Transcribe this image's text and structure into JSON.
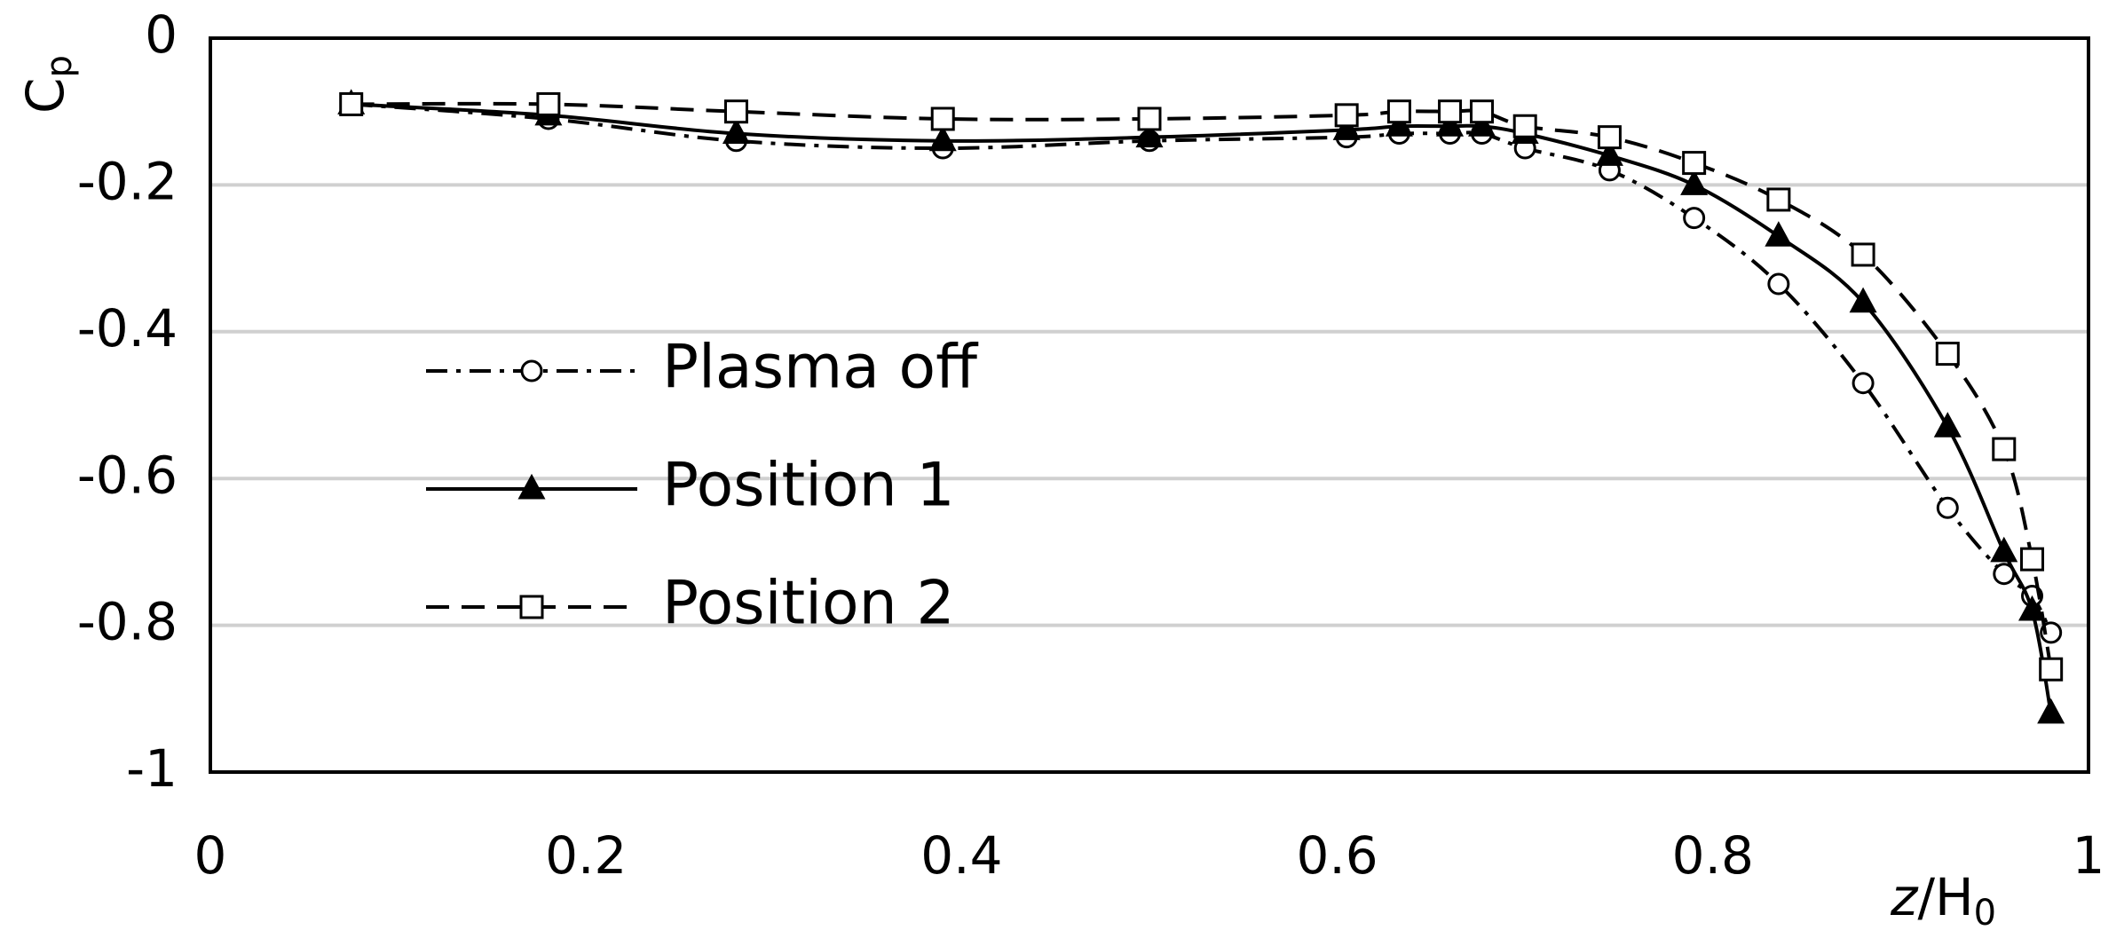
{
  "chart_data": {
    "type": "line",
    "ylabel": {
      "main": "C",
      "sub": "p"
    },
    "xlabel": {
      "italic": "z",
      "main": "/H",
      "sub": "0"
    },
    "x": [
      0.075,
      0.18,
      0.28,
      0.39,
      0.5,
      0.605,
      0.633,
      0.66,
      0.677,
      0.7,
      0.745,
      0.79,
      0.835,
      0.88,
      0.925,
      0.955,
      0.97,
      0.98
    ],
    "series": [
      {
        "name": "Plasma off",
        "color": "#000000",
        "line_style": "dashdot",
        "marker": "circle",
        "values": [
          -0.09,
          -0.11,
          -0.14,
          -0.15,
          -0.14,
          -0.135,
          -0.13,
          -0.13,
          -0.13,
          -0.15,
          -0.18,
          -0.245,
          -0.335,
          -0.47,
          -0.64,
          -0.73,
          -0.76,
          -0.81
        ]
      },
      {
        "name": "Position 1",
        "color": "#000000",
        "line_style": "solid",
        "marker": "triangle",
        "values": [
          -0.09,
          -0.105,
          -0.13,
          -0.14,
          -0.135,
          -0.125,
          -0.12,
          -0.12,
          -0.12,
          -0.13,
          -0.16,
          -0.2,
          -0.27,
          -0.36,
          -0.53,
          -0.7,
          -0.78,
          -0.92
        ]
      },
      {
        "name": "Position 2",
        "color": "#000000",
        "line_style": "dashed",
        "marker": "square",
        "values": [
          -0.09,
          -0.09,
          -0.1,
          -0.11,
          -0.11,
          -0.105,
          -0.1,
          -0.1,
          -0.1,
          -0.12,
          -0.135,
          -0.17,
          -0.22,
          -0.295,
          -0.43,
          -0.56,
          -0.71,
          -0.86
        ]
      }
    ],
    "xlim": [
      0,
      1
    ],
    "xticks": [
      0,
      0.2,
      0.4,
      0.6,
      0.8,
      1
    ],
    "ylim": [
      -1,
      0
    ],
    "yticks": [
      0,
      -0.2,
      -0.4,
      -0.6,
      -0.8,
      -1
    ],
    "grid": true,
    "legend": "left"
  }
}
